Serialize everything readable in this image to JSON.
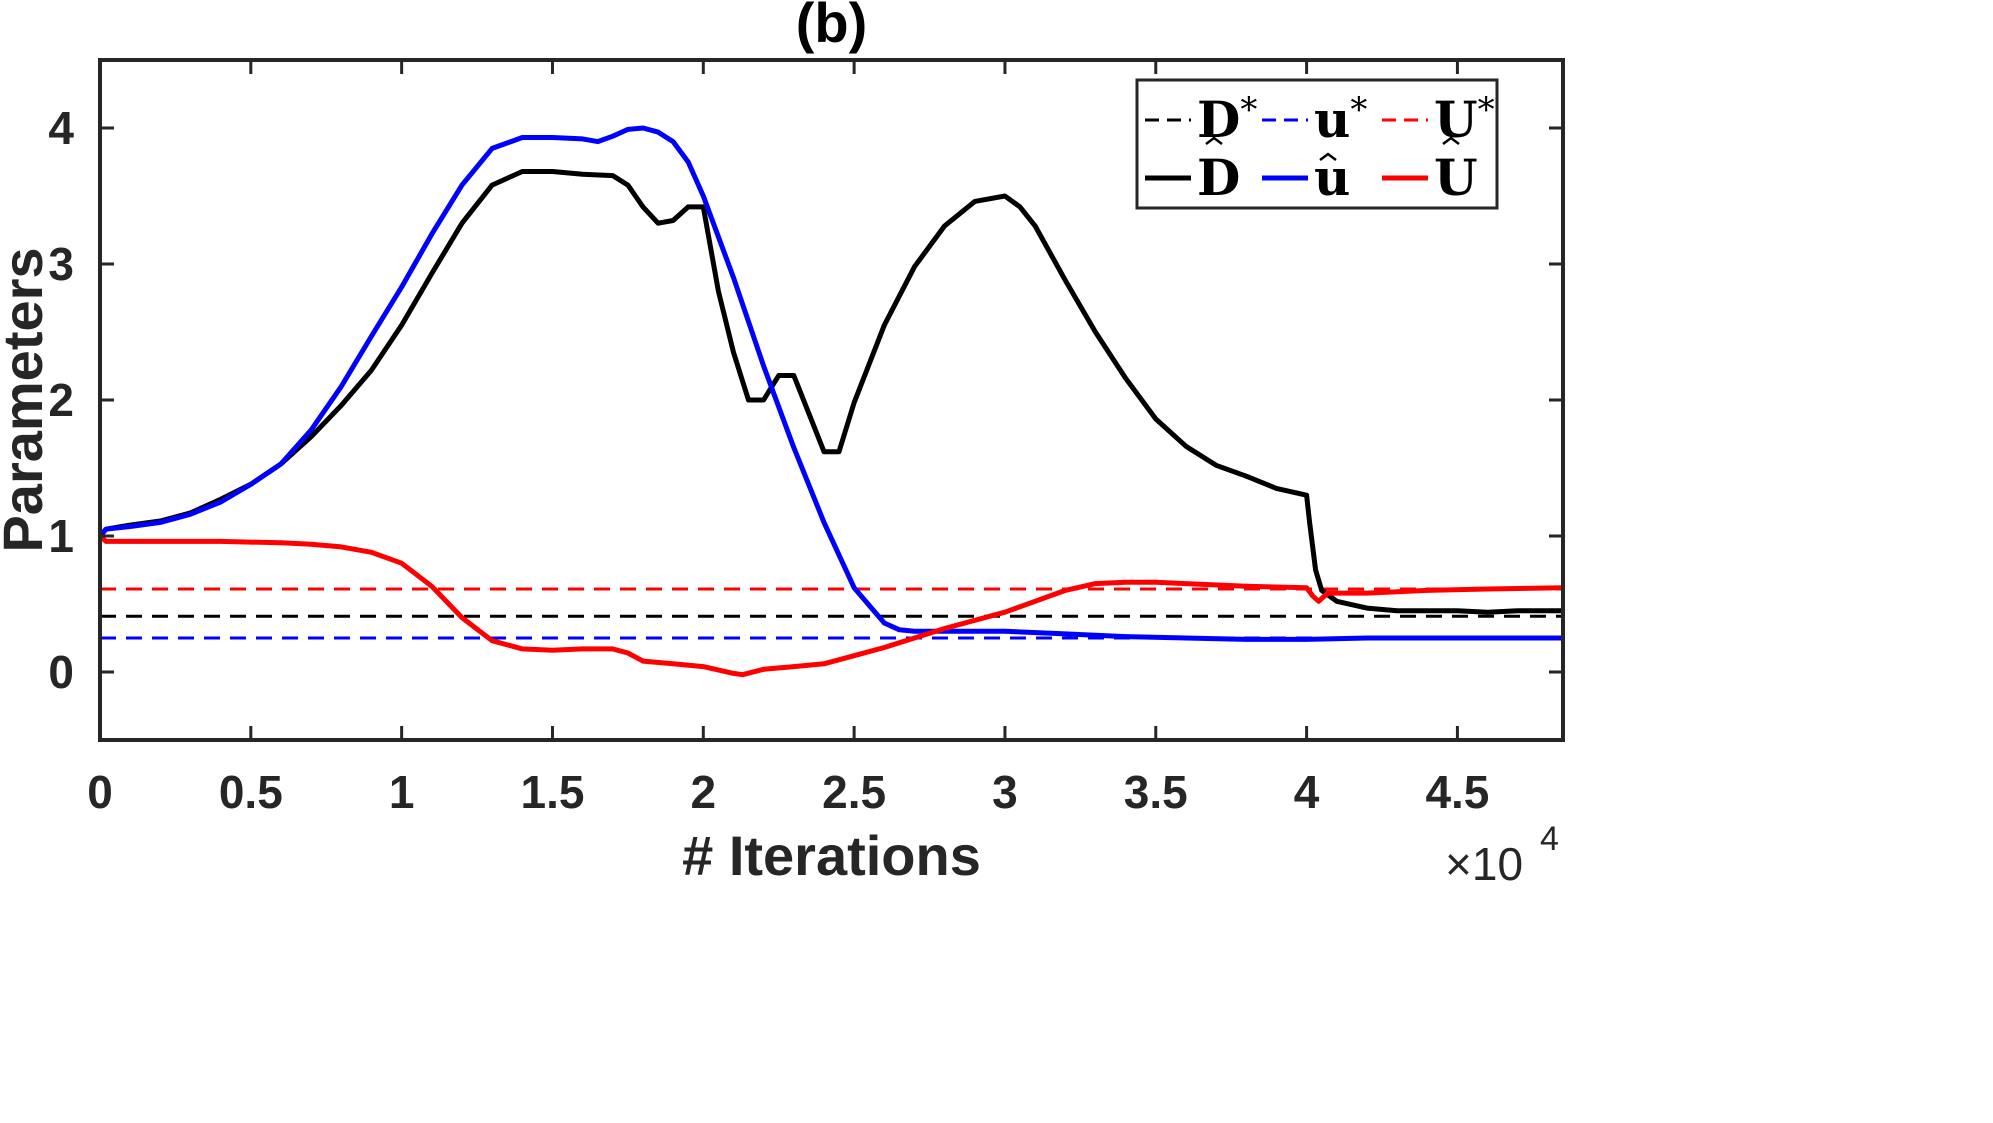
{
  "chart_data": {
    "type": "line",
    "title": "(b)",
    "xlabel": "# Iterations",
    "ylabel": "Parameters",
    "x_multiplier_label": {
      "base": "×10",
      "exponent": "4"
    },
    "xlim": [
      0,
      4.85
    ],
    "ylim": [
      -0.5,
      4.5
    ],
    "xticks": [
      0,
      0.5,
      1,
      1.5,
      2,
      2.5,
      3,
      3.5,
      4,
      4.5
    ],
    "xtick_labels": [
      "0",
      "0.5",
      "1",
      "1.5",
      "2",
      "2.5",
      "3",
      "3.5",
      "4",
      "4.5"
    ],
    "yticks": [
      0,
      1,
      2,
      3,
      4
    ],
    "ytick_labels": [
      "0",
      "1",
      "2",
      "3",
      "4"
    ],
    "grid": false,
    "legend_position": "top-right",
    "series": [
      {
        "name": "D*",
        "label": "D",
        "sup": "*",
        "hat": false,
        "color": "#000000",
        "dash": true,
        "x": [
          0,
          4.85
        ],
        "y": [
          0.41,
          0.41
        ]
      },
      {
        "name": "u*",
        "label": "u",
        "sup": "*",
        "hat": false,
        "color": "#0000ff",
        "dash": true,
        "x": [
          0,
          4.85
        ],
        "y": [
          0.25,
          0.25
        ]
      },
      {
        "name": "U*",
        "label": "U",
        "sup": "*",
        "hat": false,
        "color": "#ff0000",
        "dash": true,
        "x": [
          0,
          4.85
        ],
        "y": [
          0.61,
          0.61
        ]
      },
      {
        "name": "D̂",
        "label": "D",
        "sup": "",
        "hat": true,
        "color": "#000000",
        "dash": false,
        "x": [
          0,
          0.02,
          0.1,
          0.2,
          0.3,
          0.4,
          0.5,
          0.6,
          0.7,
          0.8,
          0.9,
          1.0,
          1.1,
          1.2,
          1.3,
          1.4,
          1.5,
          1.6,
          1.7,
          1.75,
          1.8,
          1.85,
          1.9,
          1.95,
          2.0,
          2.05,
          2.1,
          2.15,
          2.2,
          2.25,
          2.3,
          2.35,
          2.4,
          2.45,
          2.5,
          2.6,
          2.7,
          2.8,
          2.9,
          3.0,
          3.05,
          3.1,
          3.2,
          3.3,
          3.4,
          3.5,
          3.6,
          3.7,
          3.8,
          3.9,
          4.0,
          4.01,
          4.03,
          4.05,
          4.1,
          4.2,
          4.3,
          4.4,
          4.5,
          4.6,
          4.7,
          4.85
        ],
        "y": [
          1.0,
          1.05,
          1.08,
          1.11,
          1.17,
          1.27,
          1.38,
          1.53,
          1.73,
          1.96,
          2.22,
          2.55,
          2.93,
          3.3,
          3.58,
          3.68,
          3.68,
          3.66,
          3.65,
          3.58,
          3.42,
          3.3,
          3.32,
          3.42,
          3.42,
          2.8,
          2.35,
          2.0,
          2.0,
          2.18,
          2.18,
          1.9,
          1.62,
          1.62,
          1.98,
          2.55,
          2.98,
          3.28,
          3.46,
          3.5,
          3.42,
          3.28,
          2.88,
          2.5,
          2.16,
          1.86,
          1.66,
          1.52,
          1.44,
          1.35,
          1.3,
          1.1,
          0.75,
          0.6,
          0.52,
          0.47,
          0.45,
          0.45,
          0.45,
          0.44,
          0.45,
          0.45
        ]
      },
      {
        "name": "û",
        "label": "u",
        "sup": "",
        "hat": true,
        "color": "#0000ff",
        "dash": false,
        "x": [
          0,
          0.02,
          0.1,
          0.2,
          0.3,
          0.4,
          0.5,
          0.6,
          0.7,
          0.8,
          0.9,
          1.0,
          1.1,
          1.2,
          1.3,
          1.4,
          1.5,
          1.6,
          1.65,
          1.7,
          1.75,
          1.8,
          1.85,
          1.9,
          1.95,
          2.0,
          2.1,
          2.2,
          2.3,
          2.4,
          2.5,
          2.6,
          2.65,
          2.7,
          2.8,
          3.0,
          3.2,
          3.4,
          3.6,
          3.8,
          4.0,
          4.2,
          4.4,
          4.6,
          4.85
        ],
        "y": [
          1.0,
          1.05,
          1.07,
          1.1,
          1.16,
          1.25,
          1.38,
          1.53,
          1.78,
          2.1,
          2.47,
          2.83,
          3.22,
          3.58,
          3.85,
          3.93,
          3.93,
          3.92,
          3.9,
          3.94,
          3.99,
          4.0,
          3.97,
          3.9,
          3.75,
          3.5,
          2.9,
          2.25,
          1.65,
          1.1,
          0.62,
          0.36,
          0.31,
          0.3,
          0.3,
          0.3,
          0.28,
          0.26,
          0.25,
          0.24,
          0.24,
          0.25,
          0.25,
          0.25,
          0.25
        ]
      },
      {
        "name": "Û",
        "label": "U",
        "sup": "",
        "hat": true,
        "color": "#ff0000",
        "dash": false,
        "x": [
          0,
          0.02,
          0.2,
          0.4,
          0.6,
          0.7,
          0.8,
          0.9,
          1.0,
          1.1,
          1.2,
          1.3,
          1.4,
          1.5,
          1.6,
          1.7,
          1.75,
          1.8,
          1.9,
          2.0,
          2.1,
          2.13,
          2.2,
          2.3,
          2.4,
          2.5,
          2.6,
          2.7,
          2.8,
          3.0,
          3.1,
          3.2,
          3.3,
          3.4,
          3.5,
          3.6,
          3.8,
          4.0,
          4.02,
          4.04,
          4.07,
          4.2,
          4.4,
          4.6,
          4.85
        ],
        "y": [
          1.0,
          0.96,
          0.96,
          0.96,
          0.95,
          0.94,
          0.92,
          0.88,
          0.8,
          0.63,
          0.4,
          0.23,
          0.17,
          0.16,
          0.17,
          0.17,
          0.14,
          0.08,
          0.06,
          0.04,
          -0.01,
          -0.02,
          0.02,
          0.04,
          0.06,
          0.12,
          0.18,
          0.25,
          0.32,
          0.44,
          0.52,
          0.6,
          0.65,
          0.66,
          0.66,
          0.65,
          0.63,
          0.62,
          0.56,
          0.52,
          0.58,
          0.58,
          0.6,
          0.61,
          0.62
        ]
      }
    ]
  }
}
